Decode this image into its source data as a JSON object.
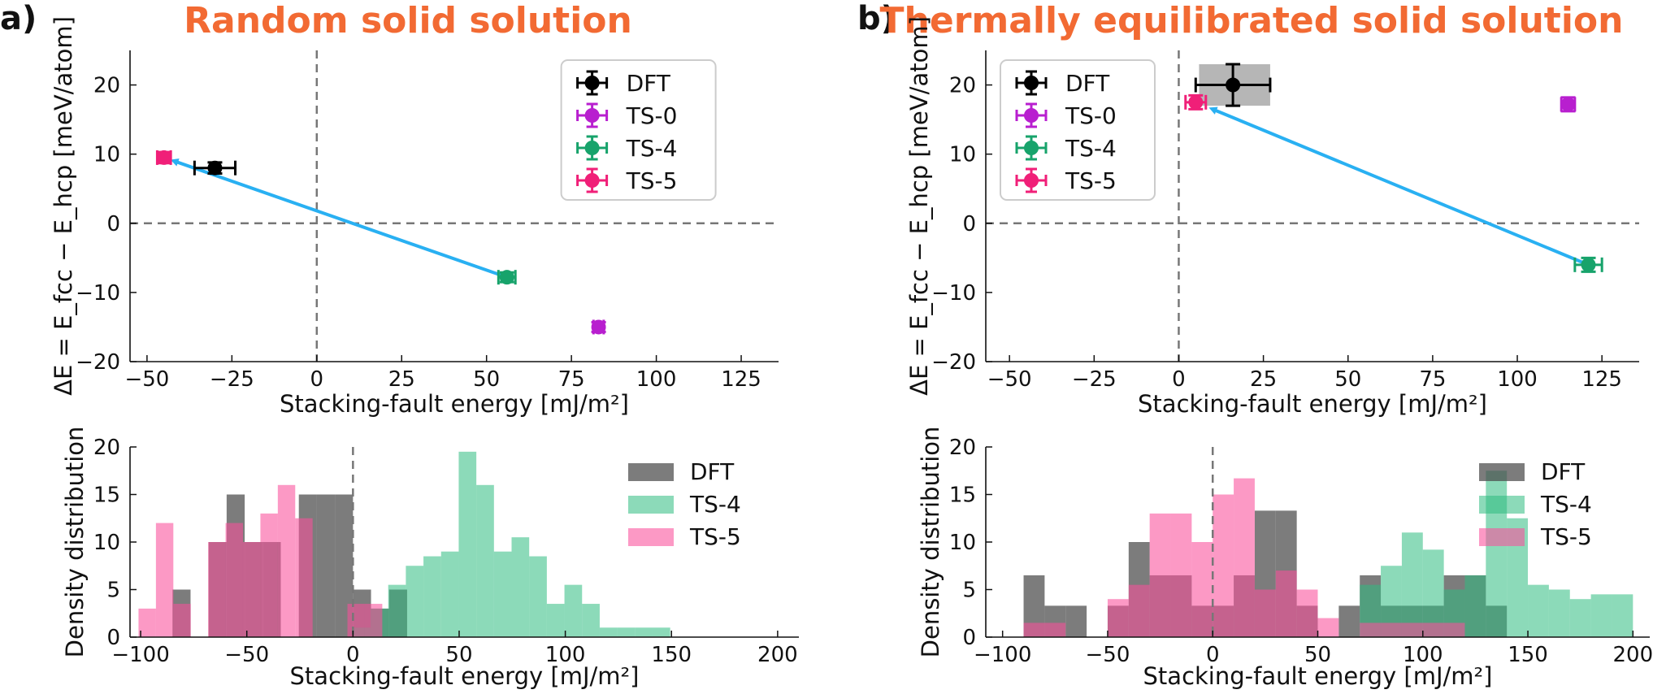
{
  "chart_data": [
    {
      "id": "a-scatter",
      "type": "scatter",
      "panel": "a)",
      "title": "Random solid solution",
      "xlabel": "Stacking-fault energy [mJ/m²]",
      "ylabel": "ΔE = E_fcc − E_hcp [meV/atom]",
      "xlim": [
        -55,
        136
      ],
      "ylim": [
        -20,
        25
      ],
      "xticks": [
        -50,
        -25,
        0,
        25,
        50,
        75,
        100,
        125
      ],
      "yticks": [
        -20,
        -10,
        0,
        10,
        20
      ],
      "ref_lines": {
        "x": 0,
        "y": 0
      },
      "legend_position": "top-right",
      "points": [
        {
          "name": "DFT",
          "color": "#000000",
          "x": -30,
          "y": 8,
          "xerr": 6,
          "yerr": 0.8
        },
        {
          "name": "TS-0",
          "color": "#b81fcf",
          "x": 83,
          "y": -15,
          "xerr": 1.5,
          "yerr": 0.7
        },
        {
          "name": "TS-4",
          "color": "#17a36b",
          "x": 56,
          "y": -7.8,
          "xerr": 2.5,
          "yerr": 0.7
        },
        {
          "name": "TS-5",
          "color": "#f01f78",
          "x": -45,
          "y": 9.5,
          "xerr": 2,
          "yerr": 0.8
        }
      ],
      "arrow": {
        "color": "#29b0f2",
        "from": [
          56,
          -7.8
        ],
        "to": [
          -42,
          9
        ]
      }
    },
    {
      "id": "b-scatter",
      "type": "scatter",
      "panel": "b)",
      "title": "Thermally equilibrated solid solution",
      "xlabel": "Stacking-fault energy [mJ/m²]",
      "ylabel": "ΔE = E_fcc − E_hcp [meV/atom]",
      "xlim": [
        -57,
        136
      ],
      "ylim": [
        -20,
        25
      ],
      "xticks": [
        -50,
        -25,
        0,
        25,
        50,
        75,
        100,
        125
      ],
      "yticks": [
        -20,
        -10,
        0,
        10,
        20
      ],
      "ref_lines": {
        "x": 0,
        "y": 0
      },
      "legend_position": "top-left",
      "shaded_region": {
        "color": "#9e9e9e",
        "x": [
          6,
          27
        ],
        "y": [
          17,
          23
        ]
      },
      "points": [
        {
          "name": "DFT",
          "color": "#000000",
          "x": 16,
          "y": 20,
          "xerr": 11,
          "yerr": 3
        },
        {
          "name": "TS-0",
          "color": "#b81fcf",
          "x": 115,
          "y": 17.2,
          "xerr": 2,
          "yerr": 1
        },
        {
          "name": "TS-4",
          "color": "#17a36b",
          "x": 121,
          "y": -6,
          "xerr": 4,
          "yerr": 1
        },
        {
          "name": "TS-5",
          "color": "#f01f78",
          "x": 5,
          "y": 17.5,
          "xerr": 3,
          "yerr": 1
        }
      ],
      "arrow": {
        "color": "#29b0f2",
        "from": [
          121,
          -6
        ],
        "to": [
          10,
          16.5
        ]
      }
    },
    {
      "id": "a-hist",
      "type": "bar",
      "xlabel": "Stacking-fault energy [mJ/m²]",
      "ylabel": "Density distribution",
      "xlim": [
        -105,
        210
      ],
      "ylim": [
        0,
        20
      ],
      "xticks": [
        -100,
        -50,
        0,
        50,
        100,
        150,
        200
      ],
      "yticks": [
        0,
        5,
        10,
        15,
        20
      ],
      "bin_width": 8.3,
      "ref_line_x": 0,
      "legend_position": "top-right",
      "series": [
        {
          "name": "DFT",
          "color": "#4a4a4a",
          "opacity": 0.72,
          "start": -85,
          "bin_width": 8.5,
          "values": [
            5,
            0,
            10,
            15,
            10,
            10,
            0,
            15,
            15,
            15,
            5,
            3,
            5
          ]
        },
        {
          "name": "TS-4",
          "color": "#2ebc80",
          "opacity": 0.55,
          "start": 0,
          "bin_width": 8.3,
          "values": [
            1,
            3,
            5.5,
            7.5,
            8.5,
            9,
            19.5,
            16,
            9,
            10.5,
            8.5,
            3.5,
            5.5,
            3.5,
            1,
            1,
            1,
            1
          ]
        },
        {
          "name": "TS-5",
          "color": "#f9509b",
          "opacity": 0.58,
          "start": -101,
          "bin_width": 8.2,
          "values": [
            3,
            12,
            3.5,
            0,
            10,
            12,
            10,
            13,
            16,
            12.5,
            0,
            0,
            3.5,
            3.5
          ]
        }
      ]
    },
    {
      "id": "b-hist",
      "type": "bar",
      "xlabel": "Stacking-fault energy [mJ/m²]",
      "ylabel": "Density distribution",
      "xlim": [
        -108,
        208
      ],
      "ylim": [
        0,
        20
      ],
      "xticks": [
        -100,
        -50,
        0,
        50,
        100,
        150,
        200
      ],
      "yticks": [
        0,
        5,
        10,
        15,
        20
      ],
      "ref_line_x": 0,
      "legend_position": "top-right",
      "series": [
        {
          "name": "DFT",
          "color": "#4a4a4a",
          "opacity": 0.72,
          "start": -90,
          "bin_width": 10,
          "values": [
            6.5,
            3.3,
            3.3,
            0,
            3.3,
            10,
            6.5,
            6.5,
            3.3,
            3.3,
            6.5,
            13.3,
            13.3,
            3.3,
            0,
            3.3,
            6.5,
            3.3,
            3.3,
            3.3,
            6.5,
            6.5,
            3.3
          ]
        },
        {
          "name": "TS-4",
          "color": "#2ebc80",
          "opacity": 0.55,
          "start": 70,
          "bin_width": 10,
          "values": [
            5.5,
            7.5,
            11,
            9.2,
            5,
            6.5,
            17.5,
            12.5,
            5.5,
            5,
            4,
            4.5,
            4.5
          ]
        },
        {
          "name": "TS-5",
          "color": "#f9509b",
          "opacity": 0.58,
          "start": -90,
          "bin_width": 10,
          "values": [
            1.5,
            1.5,
            0,
            0,
            4,
            5.5,
            13,
            13,
            10,
            15,
            16.7,
            5,
            7,
            5,
            2,
            0,
            1.5,
            1.5,
            1.5,
            1.5,
            1.5
          ]
        }
      ]
    }
  ]
}
